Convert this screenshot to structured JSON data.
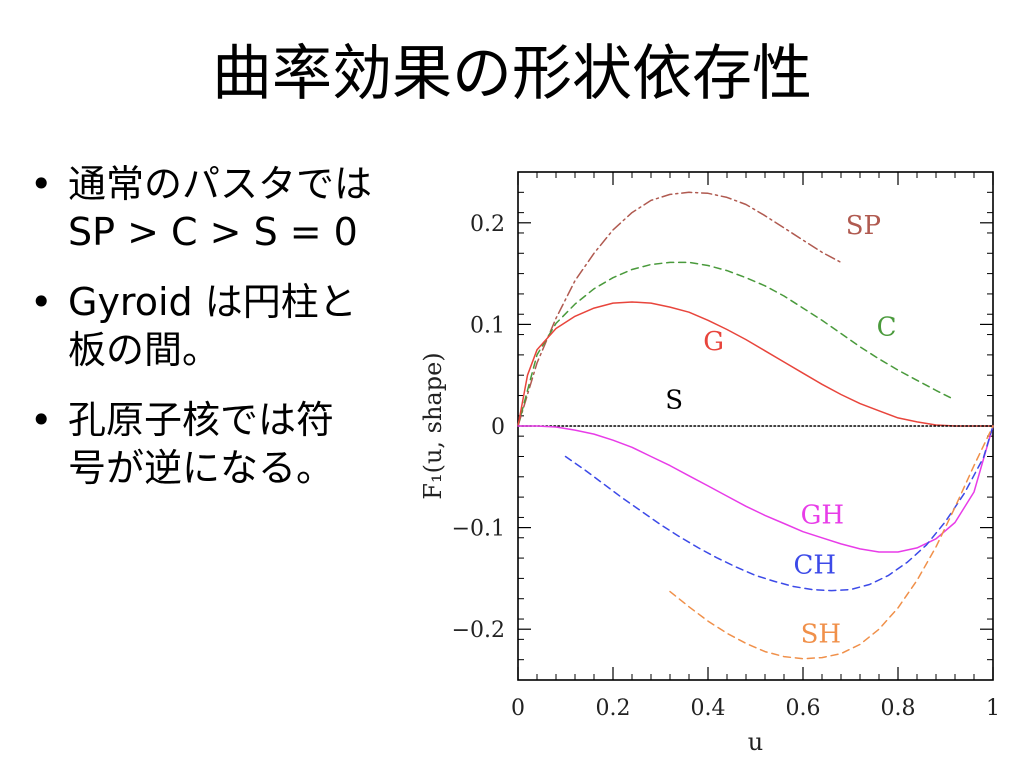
{
  "slide": {
    "title": "曲率効果の形状依存性",
    "bullets": [
      {
        "lines": [
          "通常のパスタでは",
          "SP > C > S = 0"
        ]
      },
      {
        "lines": [
          "Gyroid は円柱と",
          "板の間。"
        ]
      },
      {
        "lines": [
          "孔原子核では符",
          "号が逆になる。"
        ]
      }
    ],
    "bullet_symbol": "•"
  },
  "chart_data": {
    "type": "line",
    "xlabel": "u",
    "ylabel": "F₁(u, shape)",
    "xlim": [
      0,
      1
    ],
    "ylim": [
      -0.25,
      0.25
    ],
    "xticks": [
      0,
      0.2,
      0.4,
      0.6,
      0.8,
      1
    ],
    "xtick_labels": [
      "0",
      "0.2",
      "0.4",
      "0.6",
      "0.8",
      "1"
    ],
    "yticks": [
      -0.2,
      -0.1,
      0,
      0.1,
      0.2
    ],
    "ytick_labels": [
      "−0.2",
      "−0.1",
      "0",
      "0.1",
      "0.2"
    ],
    "grid": false,
    "series": [
      {
        "name": "SP",
        "color": "#b05a50",
        "style": "dashdot",
        "x": [
          0,
          0.04,
          0.08,
          0.12,
          0.16,
          0.2,
          0.24,
          0.28,
          0.32,
          0.36,
          0.4,
          0.44,
          0.48,
          0.52,
          0.56,
          0.6,
          0.64,
          0.68
        ],
        "y": [
          0,
          0.062,
          0.106,
          0.143,
          0.17,
          0.193,
          0.21,
          0.222,
          0.228,
          0.23,
          0.229,
          0.225,
          0.218,
          0.207,
          0.195,
          0.183,
          0.171,
          0.161
        ]
      },
      {
        "name": "C",
        "color": "#4a9a3c",
        "style": "dashed",
        "x": [
          0,
          0.04,
          0.08,
          0.12,
          0.16,
          0.2,
          0.24,
          0.28,
          0.32,
          0.36,
          0.4,
          0.44,
          0.48,
          0.52,
          0.56,
          0.6,
          0.64,
          0.68,
          0.72,
          0.76,
          0.8,
          0.84,
          0.88,
          0.91
        ],
        "y": [
          0,
          0.07,
          0.101,
          0.12,
          0.135,
          0.146,
          0.154,
          0.159,
          0.161,
          0.161,
          0.158,
          0.153,
          0.146,
          0.138,
          0.128,
          0.116,
          0.104,
          0.091,
          0.078,
          0.066,
          0.055,
          0.045,
          0.035,
          0.028
        ]
      },
      {
        "name": "G",
        "color": "#e8453c",
        "style": "solid",
        "x": [
          0,
          0.02,
          0.04,
          0.08,
          0.12,
          0.16,
          0.2,
          0.24,
          0.28,
          0.32,
          0.36,
          0.4,
          0.44,
          0.48,
          0.52,
          0.56,
          0.6,
          0.64,
          0.68,
          0.72,
          0.76,
          0.8,
          0.84,
          0.88,
          0.92,
          0.96,
          1
        ],
        "y": [
          0,
          0.05,
          0.075,
          0.096,
          0.108,
          0.116,
          0.121,
          0.122,
          0.121,
          0.117,
          0.112,
          0.104,
          0.095,
          0.085,
          0.074,
          0.063,
          0.052,
          0.041,
          0.031,
          0.022,
          0.015,
          0.008,
          0.004,
          0.001,
          0,
          0,
          0
        ]
      },
      {
        "name": "S",
        "color": "#000000",
        "style": "dotted",
        "x": [
          0,
          1
        ],
        "y": [
          0,
          0
        ]
      },
      {
        "name": "GH",
        "color": "#e83ce8",
        "style": "solid",
        "x": [
          0,
          0.04,
          0.08,
          0.12,
          0.16,
          0.2,
          0.24,
          0.28,
          0.32,
          0.36,
          0.4,
          0.44,
          0.48,
          0.52,
          0.56,
          0.6,
          0.64,
          0.68,
          0.72,
          0.76,
          0.8,
          0.84,
          0.88,
          0.92,
          0.96,
          1
        ],
        "y": [
          0,
          0,
          -0.001,
          -0.004,
          -0.008,
          -0.014,
          -0.021,
          -0.03,
          -0.039,
          -0.049,
          -0.059,
          -0.069,
          -0.079,
          -0.088,
          -0.096,
          -0.104,
          -0.11,
          -0.116,
          -0.121,
          -0.124,
          -0.124,
          -0.12,
          -0.111,
          -0.095,
          -0.065,
          0
        ]
      },
      {
        "name": "CH",
        "color": "#3c4ae8",
        "style": "dashed",
        "x": [
          0.1,
          0.14,
          0.18,
          0.22,
          0.26,
          0.3,
          0.34,
          0.38,
          0.42,
          0.46,
          0.5,
          0.54,
          0.58,
          0.62,
          0.66,
          0.7,
          0.74,
          0.78,
          0.82,
          0.86,
          0.9,
          0.94,
          0.98,
          1
        ],
        "y": [
          -0.03,
          -0.043,
          -0.057,
          -0.071,
          -0.084,
          -0.097,
          -0.109,
          -0.12,
          -0.13,
          -0.139,
          -0.147,
          -0.153,
          -0.158,
          -0.161,
          -0.162,
          -0.161,
          -0.156,
          -0.147,
          -0.134,
          -0.117,
          -0.094,
          -0.066,
          -0.031,
          0
        ]
      },
      {
        "name": "SH",
        "color": "#f0904a",
        "style": "dashed",
        "x": [
          0.32,
          0.36,
          0.4,
          0.44,
          0.48,
          0.52,
          0.56,
          0.6,
          0.64,
          0.68,
          0.72,
          0.76,
          0.8,
          0.84,
          0.88,
          0.92,
          0.96,
          1
        ],
        "y": [
          -0.163,
          -0.178,
          -0.192,
          -0.204,
          -0.214,
          -0.222,
          -0.227,
          -0.229,
          -0.228,
          -0.224,
          -0.215,
          -0.2,
          -0.179,
          -0.152,
          -0.119,
          -0.08,
          -0.039,
          0
        ]
      }
    ],
    "annotations": [
      {
        "text": "SP",
        "x": 0.69,
        "y": 0.189,
        "color": "#b05a50"
      },
      {
        "text": "C",
        "x": 0.755,
        "y": 0.089,
        "color": "#4a9a3c"
      },
      {
        "text": "G",
        "x": 0.39,
        "y": 0.075,
        "color": "#e8453c"
      },
      {
        "text": "S",
        "x": 0.31,
        "y": 0.017,
        "color": "#000000"
      },
      {
        "text": "GH",
        "x": 0.595,
        "y": -0.096,
        "color": "#e83ce8"
      },
      {
        "text": "CH",
        "x": 0.58,
        "y": -0.145,
        "color": "#3c4ae8"
      },
      {
        "text": "SH",
        "x": 0.595,
        "y": -0.213,
        "color": "#f0904a"
      }
    ]
  }
}
